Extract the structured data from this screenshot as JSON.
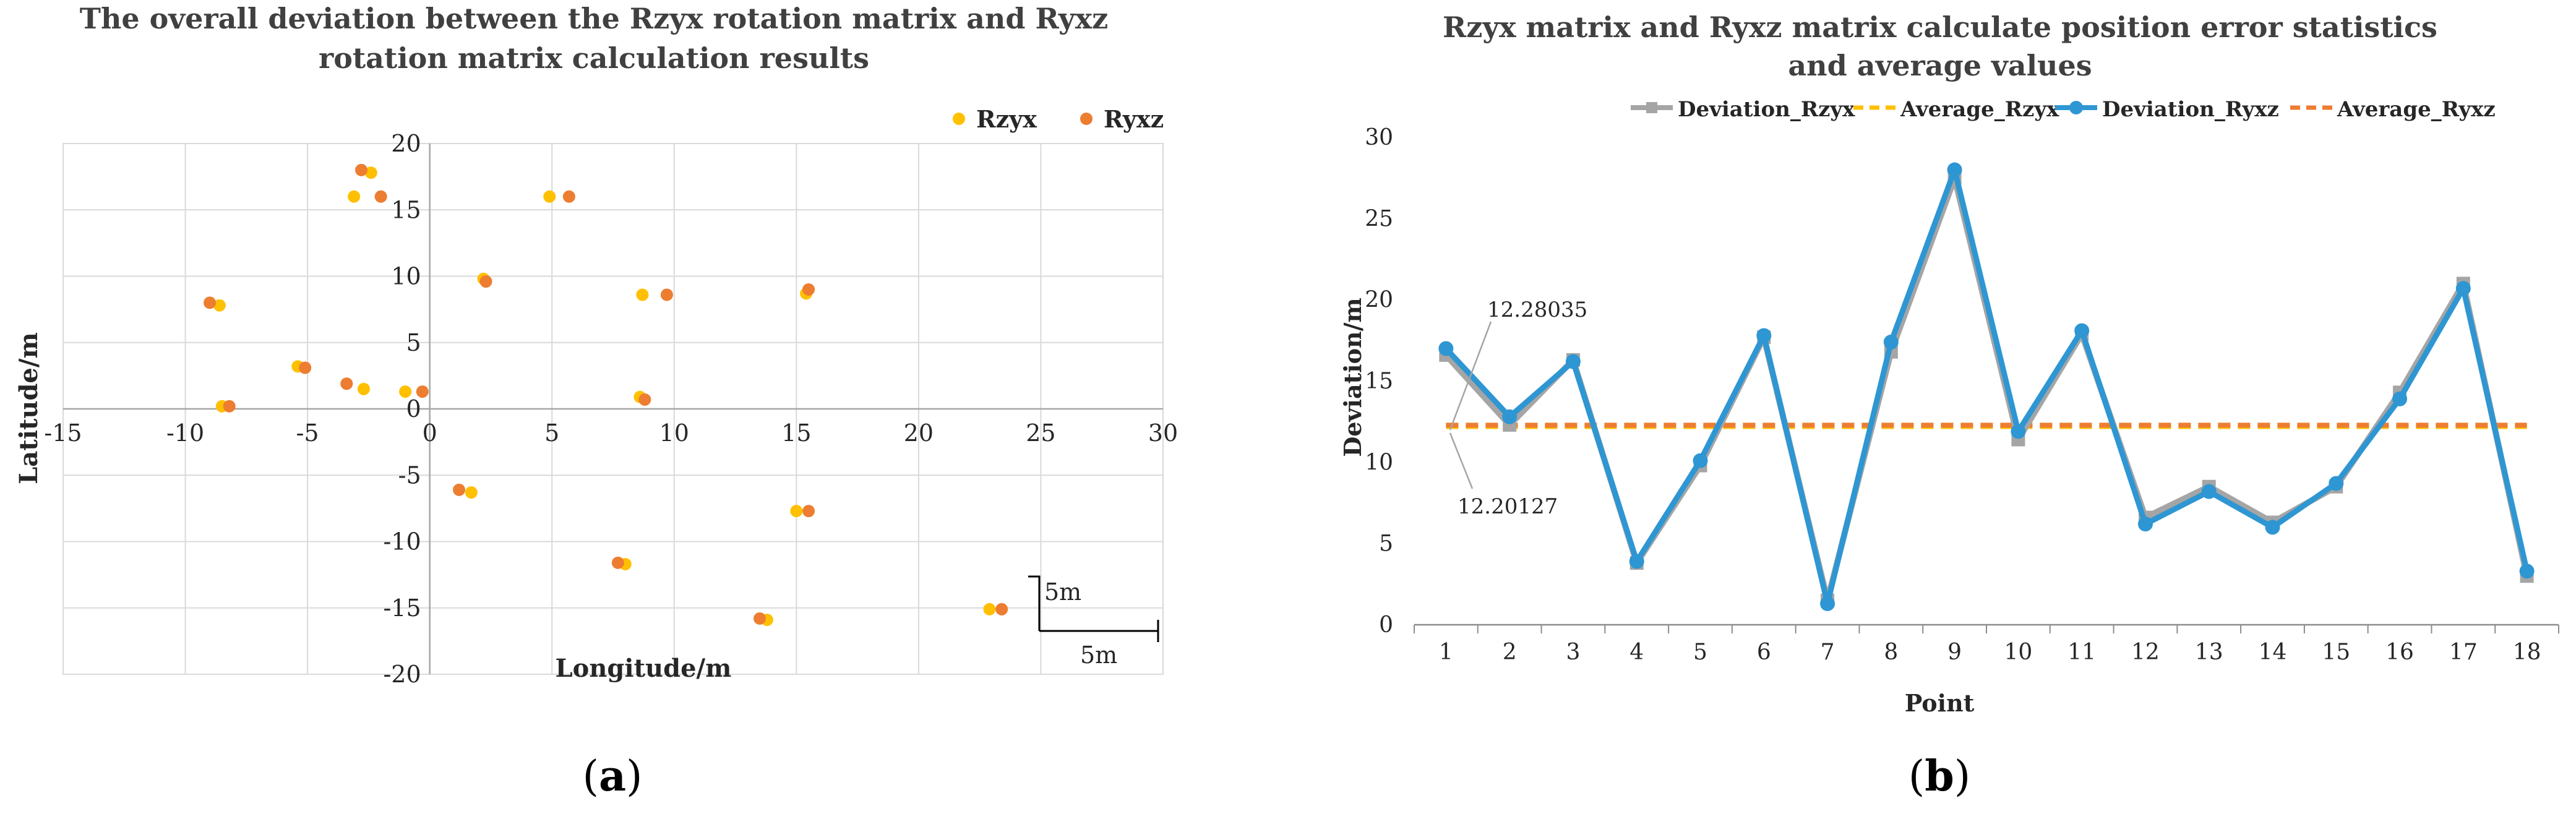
{
  "chart_data": [
    {
      "panel": "(a)",
      "panel_letter": "a",
      "type": "scatter",
      "title": "The overall deviation between the Rzyx rotation matrix and Ryxz rotation matrix calculation results",
      "title_lines": [
        "The overall deviation between the Rzyx rotation matrix and Ryxz",
        "rotation matrix calculation results"
      ],
      "xlabel": "Longitude/m",
      "ylabel": "Latitude/m",
      "xlim": [
        -15,
        30
      ],
      "ylim": [
        -20,
        20
      ],
      "xticks": [
        -15,
        -10,
        -5,
        0,
        5,
        10,
        15,
        20,
        25,
        30
      ],
      "yticks": [
        -20,
        -15,
        -10,
        -5,
        0,
        5,
        10,
        15,
        20
      ],
      "grid": true,
      "legend": "top-right",
      "scale_bar": {
        "vertical_label": "5m",
        "horizontal_label": "5m"
      },
      "series": [
        {
          "name": "Rzyx",
          "color": "#FFC000",
          "points": [
            [
              -3.1,
              16.0
            ],
            [
              -2.4,
              17.8
            ],
            [
              4.9,
              16.0
            ],
            [
              -8.6,
              7.8
            ],
            [
              -5.4,
              3.2
            ],
            [
              -2.7,
              1.5
            ],
            [
              -1.0,
              1.3
            ],
            [
              8.7,
              8.6
            ],
            [
              8.6,
              0.9
            ],
            [
              15.4,
              8.7
            ],
            [
              -8.5,
              0.2
            ],
            [
              1.7,
              -6.3
            ],
            [
              15.0,
              -7.7
            ],
            [
              8.0,
              -11.7
            ],
            [
              13.8,
              -15.9
            ],
            [
              22.9,
              -15.1
            ],
            [
              2.2,
              9.8
            ]
          ]
        },
        {
          "name": "Ryxz",
          "color": "#ED7D31",
          "points": [
            [
              -2.0,
              16.0
            ],
            [
              -2.8,
              18.0
            ],
            [
              5.7,
              16.0
            ],
            [
              -9.0,
              8.0
            ],
            [
              -5.1,
              3.1
            ],
            [
              -3.4,
              1.9
            ],
            [
              -0.3,
              1.3
            ],
            [
              9.7,
              8.6
            ],
            [
              8.8,
              0.7
            ],
            [
              15.5,
              9.0
            ],
            [
              -8.2,
              0.2
            ],
            [
              1.2,
              -6.1
            ],
            [
              15.5,
              -7.7
            ],
            [
              7.7,
              -11.6
            ],
            [
              13.5,
              -15.8
            ],
            [
              23.4,
              -15.1
            ],
            [
              2.3,
              9.6
            ]
          ]
        }
      ]
    },
    {
      "panel": "(b)",
      "panel_letter": "b",
      "type": "line",
      "title": "Rzyx matrix and Ryxz matrix calculate position error statistics and average values",
      "title_lines": [
        "Rzyx matrix and Ryxz matrix calculate position error statistics",
        "and average values"
      ],
      "xlabel": "Point",
      "ylabel": "Deviation/m",
      "categories": [
        "1",
        "2",
        "3",
        "4",
        "5",
        "6",
        "7",
        "8",
        "9",
        "10",
        "11",
        "12",
        "13",
        "14",
        "15",
        "16",
        "17",
        "18"
      ],
      "ylim": [
        0,
        30
      ],
      "yticks": [
        0,
        5,
        10,
        15,
        20,
        25,
        30
      ],
      "grid": false,
      "legend": "top",
      "series": [
        {
          "name": "Deviation_Rzyx",
          "color": "#A5A5A5",
          "marker": "square",
          "values": [
            16.6,
            12.3,
            16.3,
            3.8,
            9.8,
            17.7,
            1.5,
            16.8,
            27.5,
            11.4,
            17.9,
            6.6,
            8.5,
            6.3,
            8.5,
            14.3,
            21.0,
            3.0
          ]
        },
        {
          "name": "Average_Rzyx",
          "color": "#FFC000",
          "dash": true,
          "value": 12.20127
        },
        {
          "name": "Deviation_Ryxz",
          "color": "#2E96D3",
          "marker": "circle",
          "values": [
            17.0,
            12.8,
            16.2,
            3.9,
            10.1,
            17.8,
            1.3,
            17.4,
            28.0,
            11.9,
            18.1,
            6.2,
            8.2,
            6.0,
            8.7,
            13.9,
            20.7,
            3.3
          ]
        },
        {
          "name": "Average_Ryxz",
          "color": "#ED7D31",
          "dash": true,
          "value": 12.28035
        }
      ],
      "annotations": [
        {
          "text": "12.28035",
          "refers_to": "Average_Ryxz"
        },
        {
          "text": "12.20127",
          "refers_to": "Average_Rzyx"
        }
      ]
    }
  ]
}
